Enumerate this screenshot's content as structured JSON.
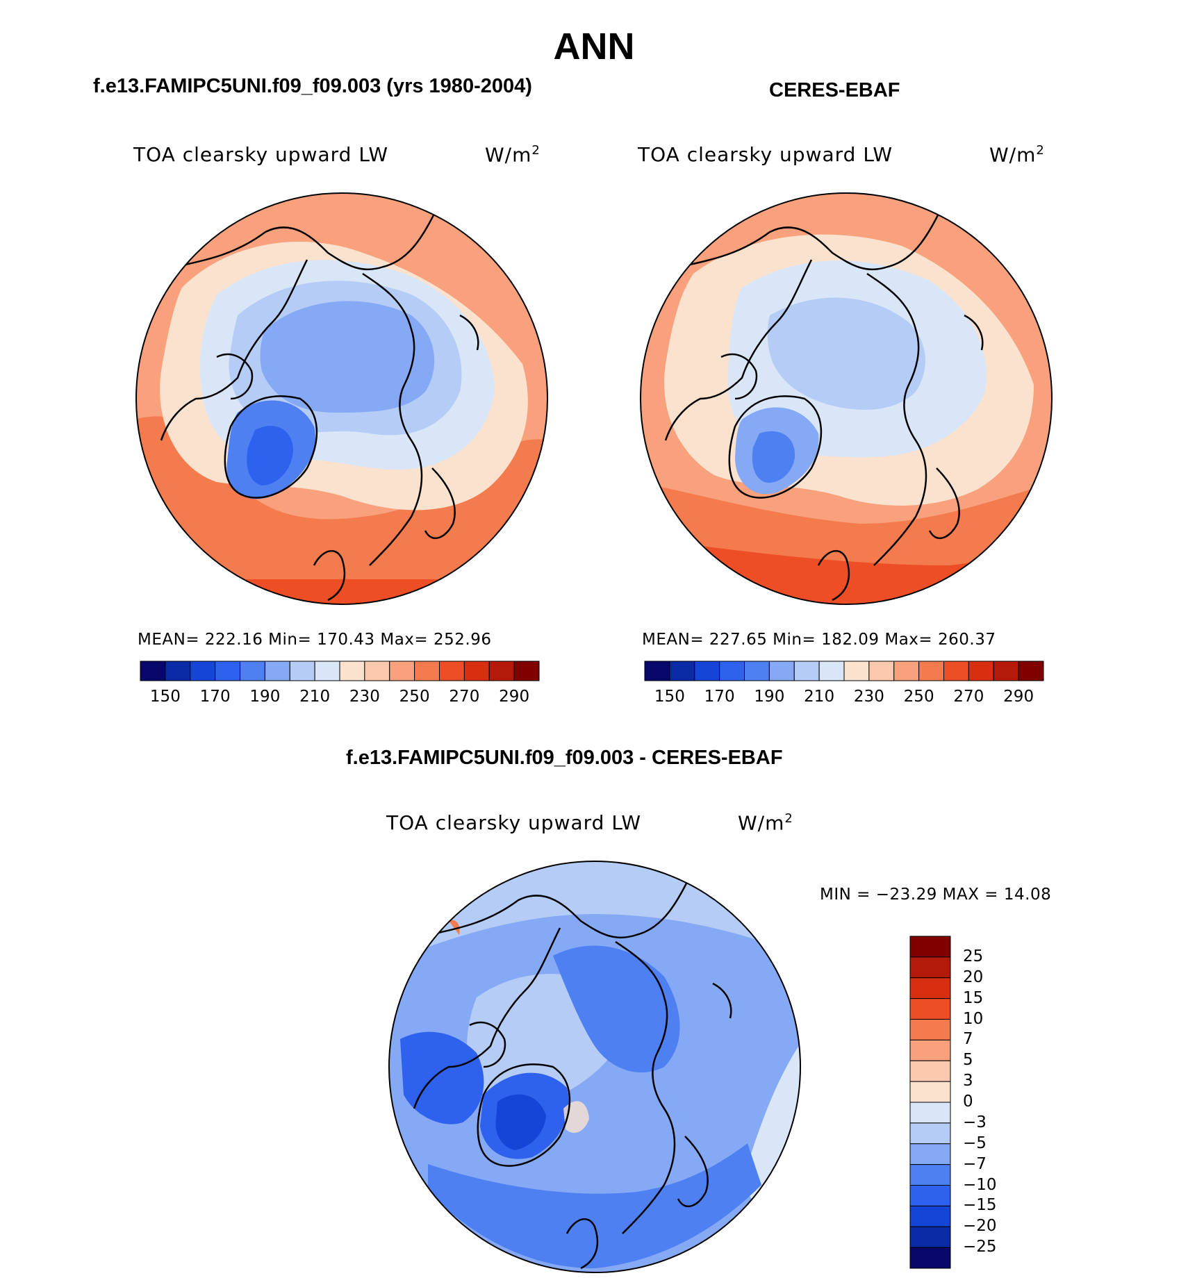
{
  "page": {
    "title": "ANN",
    "diff_title": "f.e13.FAMIPC5UNI.f09_f09.003 - CERES-EBAF"
  },
  "panels": [
    {
      "case_title": "f.e13.FAMIPC5UNI.f09_f09.003 (yrs 1980-2004)",
      "variable": "TOA clearsky upward LW",
      "units_base": "W/m",
      "units_sup": "2",
      "stats": "MEAN= 222.16   Min= 170.43   Max= 252.96",
      "colorbar_ticks": [
        "150",
        "170",
        "190",
        "210",
        "230",
        "250",
        "270",
        "290"
      ]
    },
    {
      "case_title": "CERES-EBAF",
      "variable": "TOA clearsky upward LW",
      "units_base": "W/m",
      "units_sup": "2",
      "stats": "MEAN= 227.65   Min= 182.09   Max= 260.37",
      "colorbar_ticks": [
        "150",
        "170",
        "190",
        "210",
        "230",
        "250",
        "270",
        "290"
      ]
    }
  ],
  "diff_panel": {
    "variable": "TOA clearsky upward LW",
    "units_base": "W/m",
    "units_sup": "2",
    "minmax": "MIN = −23.29 MAX =   14.08",
    "colorbar_ticks": [
      "25",
      "20",
      "15",
      "10",
      "7",
      "5",
      "3",
      "0",
      "−3",
      "−5",
      "−7",
      "−10",
      "−15",
      "−20",
      "−25"
    ]
  },
  "colors": {
    "abs_colorbar": [
      "#08086b",
      "#0a2aa6",
      "#1445d6",
      "#2e62ee",
      "#4f80f2",
      "#86a9f5",
      "#b5ccf7",
      "#d8e6f8",
      "#fbe2cf",
      "#fbc9ad",
      "#f8a17c",
      "#f47b4d",
      "#ee4e25",
      "#d72f10",
      "#b31a0a",
      "#800000"
    ],
    "diff_colorbar": [
      "#800000",
      "#b31a0a",
      "#d72f10",
      "#ee4e25",
      "#f47b4d",
      "#f8a17c",
      "#fbc9ad",
      "#fbe2cf",
      "#d8e6f8",
      "#b5ccf7",
      "#86a9f5",
      "#4f80f2",
      "#2e62ee",
      "#1445d6",
      "#0a2aa6",
      "#08086b"
    ]
  }
}
